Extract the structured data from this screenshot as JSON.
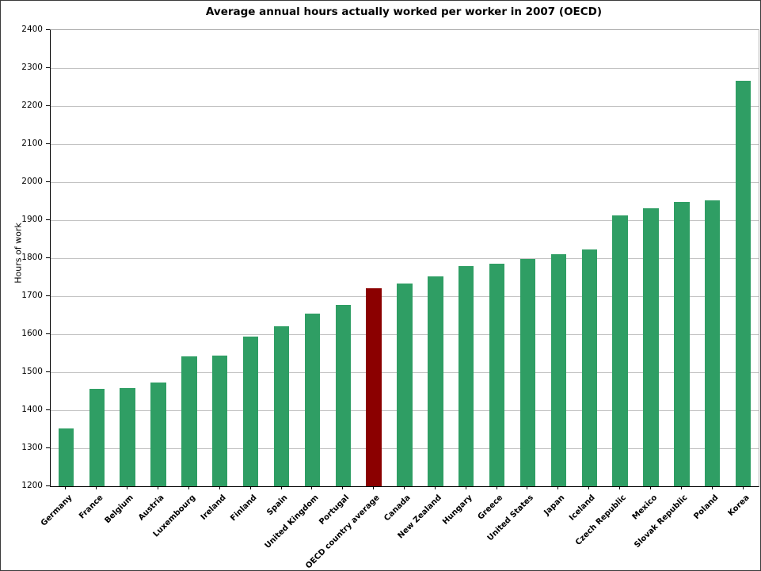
{
  "figure": {
    "title": "Average annual hours actually worked per worker in 2007 (OECD)",
    "ylabel": "Hours of work"
  },
  "chart_data": {
    "type": "bar",
    "title": "Average annual hours actually worked per worker in 2007 (OECD)",
    "xlabel": "",
    "ylabel": "Hours of work",
    "ylim": [
      1200,
      2400
    ],
    "ytick_step": 100,
    "grid": true,
    "legend": "none",
    "bar_color": "#2f9e64",
    "highlight_color": "#8b0000",
    "highlight_category": "OECD country average",
    "categories": [
      "Germany",
      "France",
      "Belgium",
      "Austria",
      "Luxembourg",
      "Ireland",
      "Finland",
      "Spain",
      "United Kingdom",
      "Portugal",
      "OECD country average",
      "Canada",
      "New Zealand",
      "Hungary",
      "Greece",
      "United States",
      "Japan",
      "Iceland",
      "Czech Republic",
      "Mexico",
      "Slovak Republic",
      "Poland",
      "Korea"
    ],
    "values": [
      1352,
      1456,
      1459,
      1473,
      1542,
      1543,
      1593,
      1621,
      1655,
      1677,
      1720,
      1734,
      1752,
      1780,
      1786,
      1798,
      1810,
      1822,
      1913,
      1932,
      1948,
      1953,
      2266
    ]
  }
}
